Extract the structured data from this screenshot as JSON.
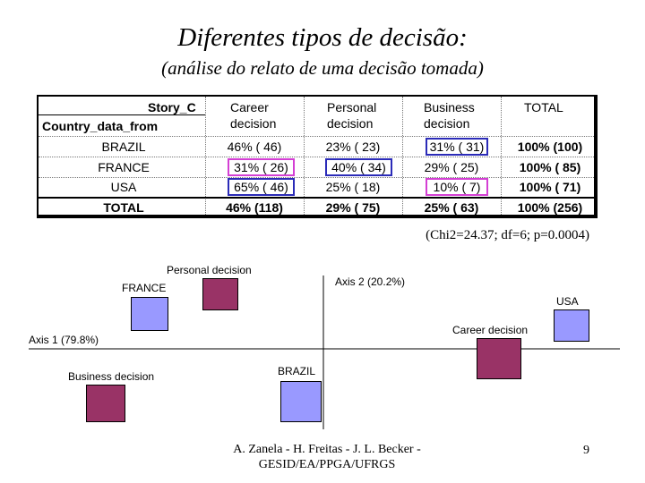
{
  "title": "Diferentes tipos de decisão:",
  "subtitle": "(análise do relato de uma decisão tomada)",
  "table": {
    "corner_top": "Story_C",
    "corner_bottom": "Country_data_from",
    "columns": [
      {
        "line1": "Career",
        "line2": "decision"
      },
      {
        "line1": "Personal",
        "line2": "decision"
      },
      {
        "line1": "Business",
        "line2": "decision"
      },
      {
        "line1": "TOTAL",
        "line2": ""
      }
    ],
    "rows": [
      {
        "label": "BRAZIL",
        "cells": [
          "46% ( 46)",
          "23% ( 23)",
          "31% ( 31)",
          "100% (100)"
        ]
      },
      {
        "label": "FRANCE",
        "cells": [
          "31% ( 26)",
          "40% ( 34)",
          "29% ( 25)",
          "100% ( 85)"
        ]
      },
      {
        "label": "USA",
        "cells": [
          "65% ( 46)",
          "25% ( 18)",
          "10% (  7)",
          "100% ( 71)"
        ]
      }
    ],
    "total_row": {
      "label": "TOTAL",
      "cells": [
        "46% (118)",
        "29% ( 75)",
        "25% ( 63)",
        "100% (256)"
      ]
    }
  },
  "stats": "(Chi2=24.37; df=6; p=0.0004)",
  "plot": {
    "axis1_label": "Axis 1 (79.8%)",
    "axis2_label": "Axis 2 (20.2%)",
    "point_labels": {
      "personal": "Personal decision",
      "france": "FRANCE",
      "usa": "USA",
      "career": "Career decision",
      "business": "Business decision",
      "brazil": "BRAZIL"
    },
    "colors": {
      "country": "#9999ff",
      "decision": "#993366"
    }
  },
  "footer": "A. Zanela - H. Freitas - J. L. Becker - GESID/EA/PPGA/UFRGS",
  "page_number": "9"
}
